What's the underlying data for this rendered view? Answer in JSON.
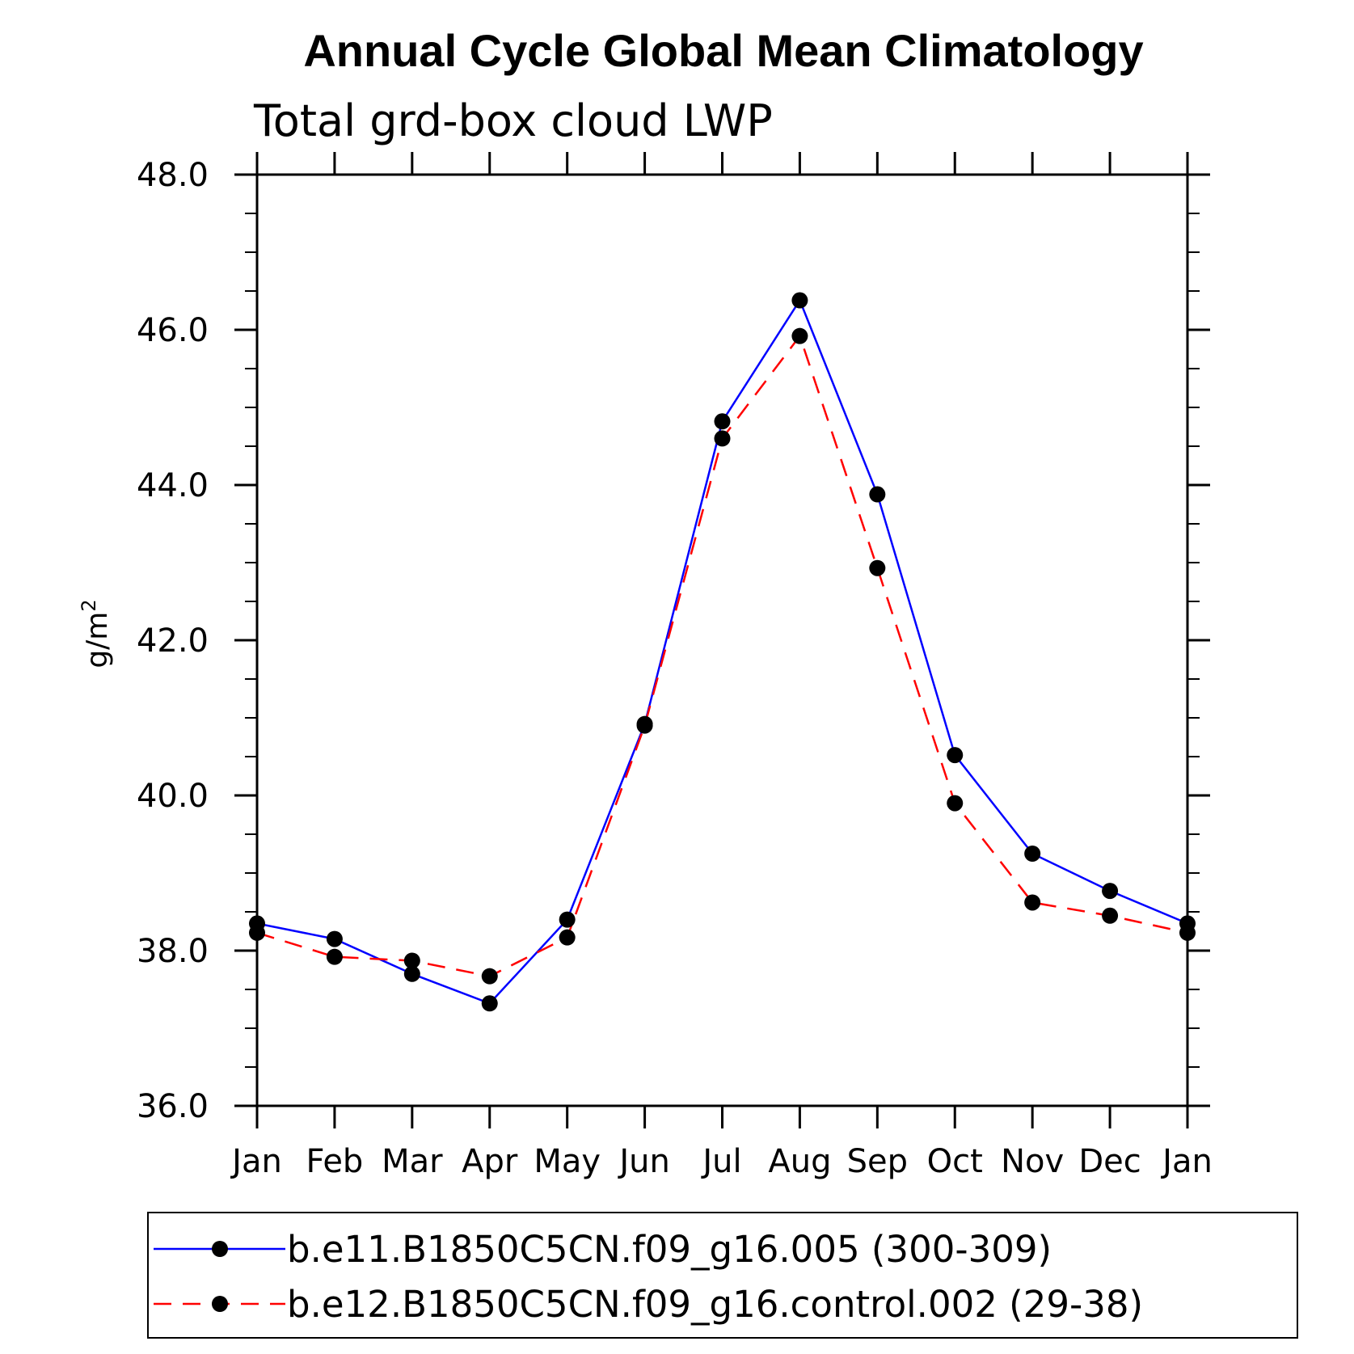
{
  "chart_data": {
    "type": "line",
    "title": "Annual Cycle Global Mean Climatology",
    "subtitle": "Total grd-box cloud LWP",
    "ylabel_base": "g/m",
    "ylabel_sup": "2",
    "xlabel": "",
    "categories": [
      "Jan",
      "Feb",
      "Mar",
      "Apr",
      "May",
      "Jun",
      "Jul",
      "Aug",
      "Sep",
      "Oct",
      "Nov",
      "Dec",
      "Jan"
    ],
    "ylim": [
      36.0,
      48.0
    ],
    "yticks": [
      "36.0",
      "38.0",
      "40.0",
      "42.0",
      "44.0",
      "46.0",
      "48.0"
    ],
    "grid": false,
    "legend_position": "bottom",
    "series": [
      {
        "name": "b.e11.B1850C5CN.f09_g16.005 (300-309)",
        "color": "#0000ff",
        "style": "solid",
        "values": [
          38.35,
          38.15,
          37.7,
          37.32,
          38.4,
          40.92,
          44.82,
          46.38,
          43.88,
          40.52,
          39.25,
          38.77,
          38.35
        ]
      },
      {
        "name": "b.e12.B1850C5CN.f09_g16.control.002 (29-38)",
        "color": "#ff0000",
        "style": "dashed",
        "values": [
          38.23,
          37.92,
          37.87,
          37.67,
          38.17,
          40.9,
          44.6,
          45.92,
          42.93,
          39.9,
          38.62,
          38.45,
          38.23
        ]
      }
    ]
  }
}
